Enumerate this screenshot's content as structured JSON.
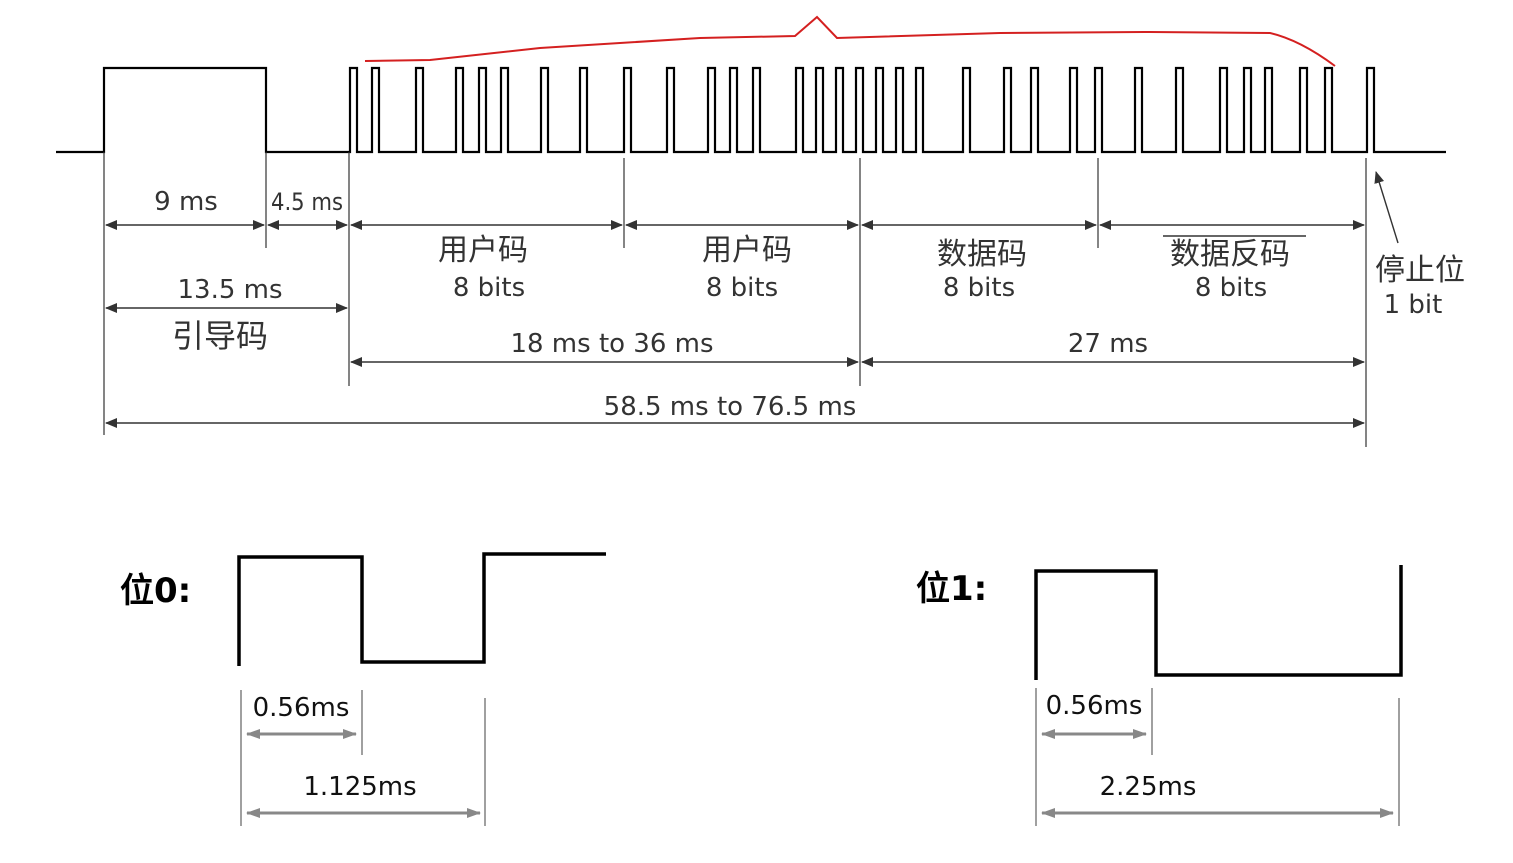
{
  "frame": {
    "lead_high": "9 ms",
    "lead_low": "4.5 ms",
    "lead_total": "13.5 ms",
    "lead_code": "引导码",
    "user_code_1": "用户码",
    "user_code_1_bits": "8 bits",
    "user_code_2": "用户码",
    "user_code_2_bits": "8 bits",
    "data_code": "数据码",
    "data_code_bits": "8 bits",
    "data_inv_code": "数据反码",
    "data_inv_code_bits": "8 bits",
    "stop_bit": "停止位",
    "stop_bit_bits": "1 bit",
    "user_span": "18 ms to 36 ms",
    "data_span": "27 ms",
    "total_span": "58.5 ms to 76.5 ms",
    "wave_color": "#000000",
    "dimension_color": "#333333",
    "annotation_color": "#d42020"
  },
  "bit0": {
    "label": "位0:",
    "high_time": "0.56ms",
    "period": "1.125ms"
  },
  "bit1": {
    "label": "位1:",
    "high_time": "0.56ms",
    "period": "2.25ms"
  },
  "legend_colors": {
    "bit_arrow": "#888888",
    "bit_wave": "#000000"
  }
}
